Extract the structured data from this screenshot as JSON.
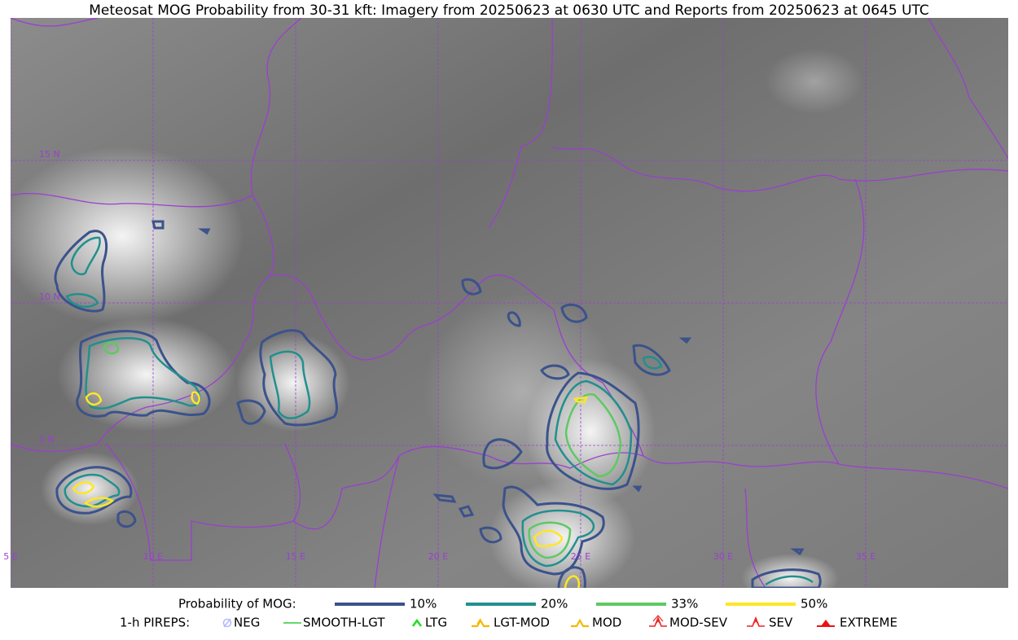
{
  "title": "Meteosat MOG Probability from 30-31 kft: Imagery from 20250623 at 0630 UTC and Reports from 20250623 at 0645 UTC",
  "map": {
    "lon_lines": [
      {
        "value": 5,
        "label": "5 E"
      },
      {
        "value": 10,
        "label": "10 E"
      },
      {
        "value": 15,
        "label": "15 E"
      },
      {
        "value": 20,
        "label": "20 E"
      },
      {
        "value": 25,
        "label": "25 E"
      },
      {
        "value": 30,
        "label": "30 E"
      },
      {
        "value": 35,
        "label": "35 E"
      }
    ],
    "lat_lines": [
      {
        "value": 15,
        "label": "15 N"
      },
      {
        "value": 10,
        "label": "10 N"
      },
      {
        "value": 5,
        "label": "5 N"
      }
    ]
  },
  "legend": {
    "probability_title": "Probability of MOG:",
    "probability_levels": [
      {
        "label": "10%",
        "color": "#3b528b"
      },
      {
        "label": "20%",
        "color": "#21908d"
      },
      {
        "label": "33%",
        "color": "#5ec962"
      },
      {
        "label": "50%",
        "color": "#fde725"
      }
    ],
    "pireps_title": "1-h PIREPS:",
    "pireps": [
      {
        "label": "NEG",
        "color": "#b8b8ff"
      },
      {
        "label": "SMOOTH-LGT",
        "color": "#33cc33"
      },
      {
        "label": "LTG",
        "color": "#22dd22"
      },
      {
        "label": "LGT-MOD",
        "color": "#f5b800"
      },
      {
        "label": "MOD",
        "color": "#f5b800"
      },
      {
        "label": "MOD-SEV",
        "color": "#ee2222"
      },
      {
        "label": "SEV",
        "color": "#ee2222"
      },
      {
        "label": "EXTREME",
        "color": "#ee1111"
      }
    ]
  }
}
